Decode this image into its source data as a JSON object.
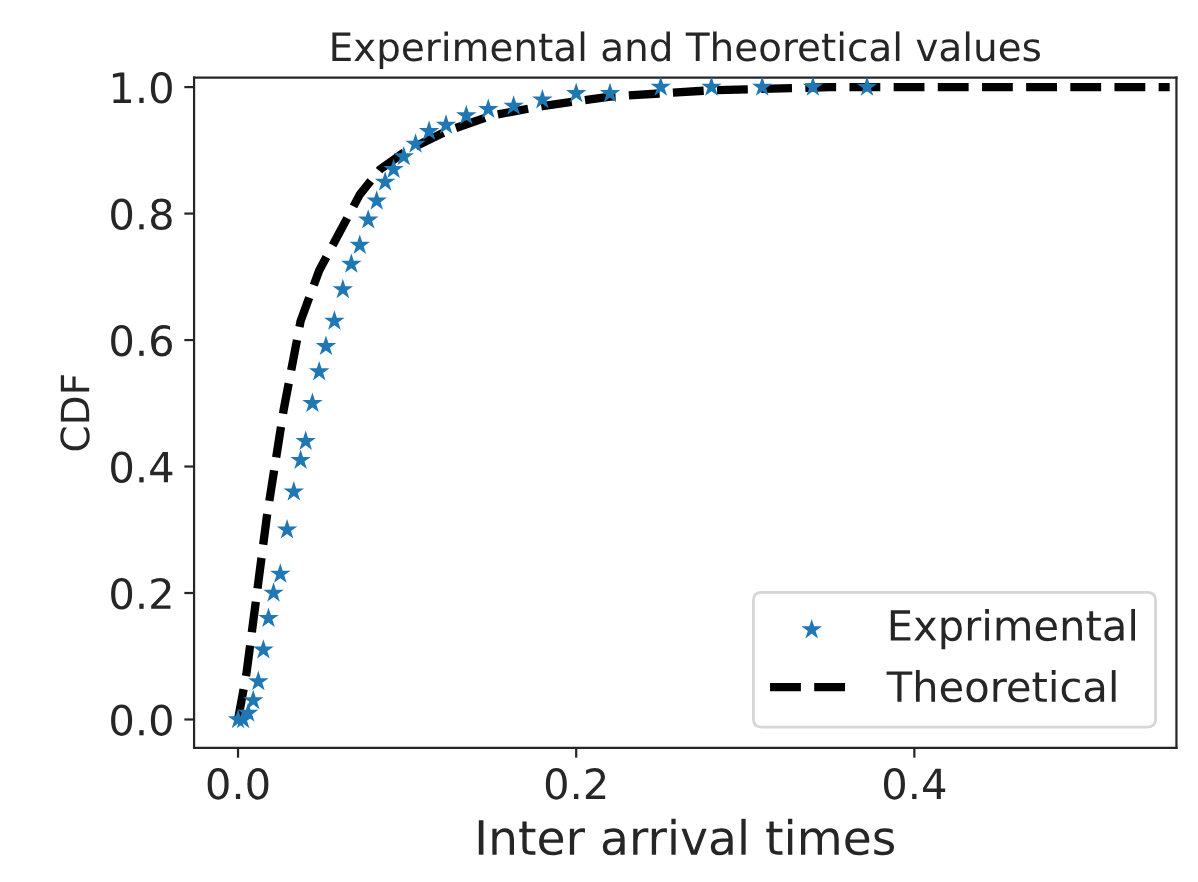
{
  "chart_data": {
    "type": "scatter",
    "title": "Experimental and Theoretical values",
    "xlabel": "Inter arrival times",
    "ylabel": "CDF",
    "xlim": [
      -0.026,
      0.555
    ],
    "ylim": [
      -0.045,
      1.015
    ],
    "xticks": [
      {
        "value": 0,
        "label": "0.0"
      },
      0.2,
      0.4
    ],
    "yticks": [
      {
        "value": 0,
        "label": "0.0"
      },
      0.2,
      0.4,
      0.6,
      0.8,
      {
        "value": 1,
        "label": "1.0"
      }
    ],
    "grid": false,
    "legend": "bottom right",
    "series": [
      {
        "name": "Exprimental",
        "marker": "star",
        "color": "#1f77b4",
        "x": [
          0.0,
          0.003,
          0.006,
          0.009,
          0.012,
          0.015,
          0.018,
          0.021,
          0.025,
          0.029,
          0.033,
          0.037,
          0.04,
          0.044,
          0.048,
          0.052,
          0.057,
          0.062,
          0.067,
          0.072,
          0.077,
          0.082,
          0.087,
          0.092,
          0.098,
          0.105,
          0.113,
          0.123,
          0.135,
          0.148,
          0.163,
          0.18,
          0.2,
          0.22,
          0.25,
          0.28,
          0.31,
          0.34,
          0.372
        ],
        "values": [
          0.0,
          0.0,
          0.01,
          0.03,
          0.06,
          0.11,
          0.16,
          0.2,
          0.23,
          0.3,
          0.36,
          0.41,
          0.44,
          0.5,
          0.55,
          0.59,
          0.63,
          0.68,
          0.72,
          0.75,
          0.79,
          0.82,
          0.85,
          0.87,
          0.89,
          0.91,
          0.93,
          0.94,
          0.955,
          0.965,
          0.97,
          0.98,
          0.99,
          0.99,
          1.0,
          1.0,
          1.0,
          1.0,
          1.0
        ]
      },
      {
        "name": "Theoretical",
        "type": "line",
        "line_style": "dashed",
        "marker": "none",
        "color": "#000000",
        "x": [
          0.0,
          0.005,
          0.017,
          0.027,
          0.037,
          0.048,
          0.06,
          0.072,
          0.084,
          0.1,
          0.123,
          0.15,
          0.18,
          0.22,
          0.28,
          0.35,
          0.45,
          0.551
        ],
        "values": [
          0.0,
          0.073,
          0.32,
          0.49,
          0.63,
          0.71,
          0.77,
          0.83,
          0.87,
          0.9,
          0.93,
          0.955,
          0.97,
          0.985,
          0.995,
          1.0,
          1.0,
          1.0
        ]
      }
    ]
  }
}
